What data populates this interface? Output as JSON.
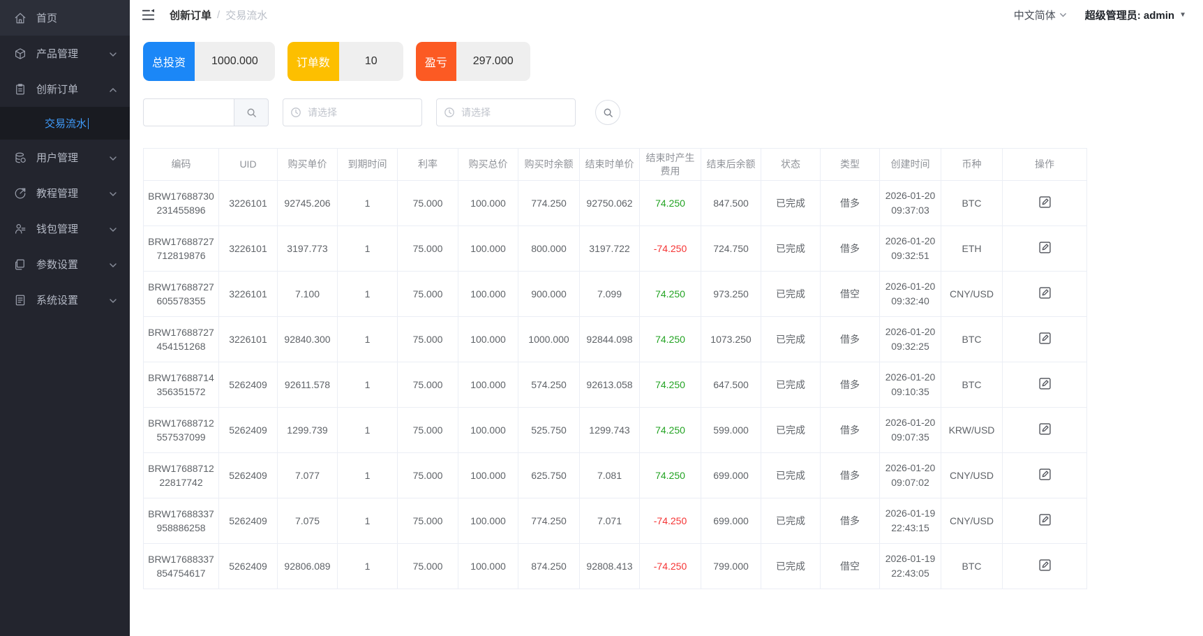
{
  "sidebar": {
    "items": [
      {
        "label": "首页",
        "icon": "home-icon",
        "expandable": false,
        "highlighted": true
      },
      {
        "label": "产品管理",
        "icon": "product-icon",
        "expandable": true,
        "expanded": false
      },
      {
        "label": "创新订单",
        "icon": "order-icon",
        "expandable": true,
        "expanded": true,
        "children": [
          {
            "label": "交易流水",
            "active": true
          }
        ]
      },
      {
        "label": "用户管理",
        "icon": "user-icon",
        "expandable": true,
        "expanded": false
      },
      {
        "label": "教程管理",
        "icon": "tutorial-icon",
        "expandable": true,
        "expanded": false
      },
      {
        "label": "钱包管理",
        "icon": "wallet-icon",
        "expandable": true,
        "expanded": false
      },
      {
        "label": "参数设置",
        "icon": "params-icon",
        "expandable": true,
        "expanded": false
      },
      {
        "label": "系统设置",
        "icon": "system-icon",
        "expandable": true,
        "expanded": false
      }
    ]
  },
  "header": {
    "breadcrumb": {
      "parent": "创新订单",
      "separator": "/",
      "current": "交易流水"
    },
    "language": "中文简体",
    "user": "超级管理员: admin"
  },
  "stats": [
    {
      "label": "总投资",
      "value": "1000.000",
      "color": "#1b87f7"
    },
    {
      "label": "订单数",
      "value": "10",
      "color": "#fdbf00"
    },
    {
      "label": "盈亏",
      "value": "297.000",
      "color": "#fc5a23"
    }
  ],
  "filters": {
    "search_value": "",
    "date_placeholder": "请选择"
  },
  "colors": {
    "profit": "#23a323",
    "loss": "#f53434"
  },
  "table": {
    "columns": [
      "编码",
      "UID",
      "购买单价",
      "到期时间",
      "利率",
      "购买总价",
      "购买时余额",
      "结束时单价",
      "结束时产生费用",
      "结束后余额",
      "状态",
      "类型",
      "创建时间",
      "币种",
      "操作"
    ],
    "rows": [
      {
        "code": "BRW17688730231455896",
        "uid": "3226101",
        "buy_price": "92745.206",
        "expire": "1",
        "rate": "75.000",
        "total": "100.000",
        "balance_at_buy": "774.250",
        "end_price": "92750.062",
        "fee": "74.250",
        "fee_color": "profit",
        "end_balance": "847.500",
        "status": "已完成",
        "type": "借多",
        "created_date": "2026-01-20",
        "created_time": "09:37:03",
        "currency": "BTC"
      },
      {
        "code": "BRW17688727712819876",
        "uid": "3226101",
        "buy_price": "3197.773",
        "expire": "1",
        "rate": "75.000",
        "total": "100.000",
        "balance_at_buy": "800.000",
        "end_price": "3197.722",
        "fee": "-74.250",
        "fee_color": "loss",
        "end_balance": "724.750",
        "status": "已完成",
        "type": "借多",
        "created_date": "2026-01-20",
        "created_time": "09:32:51",
        "currency": "ETH"
      },
      {
        "code": "BRW17688727605578355",
        "uid": "3226101",
        "buy_price": "7.100",
        "expire": "1",
        "rate": "75.000",
        "total": "100.000",
        "balance_at_buy": "900.000",
        "end_price": "7.099",
        "fee": "74.250",
        "fee_color": "profit",
        "end_balance": "973.250",
        "status": "已完成",
        "type": "借空",
        "created_date": "2026-01-20",
        "created_time": "09:32:40",
        "currency": "CNY/USD"
      },
      {
        "code": "BRW17688727454151268",
        "uid": "3226101",
        "buy_price": "92840.300",
        "expire": "1",
        "rate": "75.000",
        "total": "100.000",
        "balance_at_buy": "1000.000",
        "end_price": "92844.098",
        "fee": "74.250",
        "fee_color": "profit",
        "end_balance": "1073.250",
        "status": "已完成",
        "type": "借多",
        "created_date": "2026-01-20",
        "created_time": "09:32:25",
        "currency": "BTC"
      },
      {
        "code": "BRW17688714356351572",
        "uid": "5262409",
        "buy_price": "92611.578",
        "expire": "1",
        "rate": "75.000",
        "total": "100.000",
        "balance_at_buy": "574.250",
        "end_price": "92613.058",
        "fee": "74.250",
        "fee_color": "profit",
        "end_balance": "647.500",
        "status": "已完成",
        "type": "借多",
        "created_date": "2026-01-20",
        "created_time": "09:10:35",
        "currency": "BTC"
      },
      {
        "code": "BRW17688712557537099",
        "uid": "5262409",
        "buy_price": "1299.739",
        "expire": "1",
        "rate": "75.000",
        "total": "100.000",
        "balance_at_buy": "525.750",
        "end_price": "1299.743",
        "fee": "74.250",
        "fee_color": "profit",
        "end_balance": "599.000",
        "status": "已完成",
        "type": "借多",
        "created_date": "2026-01-20",
        "created_time": "09:07:35",
        "currency": "KRW/USD"
      },
      {
        "code": "BRW1768871222817742",
        "uid": "5262409",
        "buy_price": "7.077",
        "expire": "1",
        "rate": "75.000",
        "total": "100.000",
        "balance_at_buy": "625.750",
        "end_price": "7.081",
        "fee": "74.250",
        "fee_color": "profit",
        "end_balance": "699.000",
        "status": "已完成",
        "type": "借多",
        "created_date": "2026-01-20",
        "created_time": "09:07:02",
        "currency": "CNY/USD"
      },
      {
        "code": "BRW17688337958886258",
        "uid": "5262409",
        "buy_price": "7.075",
        "expire": "1",
        "rate": "75.000",
        "total": "100.000",
        "balance_at_buy": "774.250",
        "end_price": "7.071",
        "fee": "-74.250",
        "fee_color": "loss",
        "end_balance": "699.000",
        "status": "已完成",
        "type": "借多",
        "created_date": "2026-01-19",
        "created_time": "22:43:15",
        "currency": "CNY/USD"
      },
      {
        "code": "BRW17688337854754617",
        "uid": "5262409",
        "buy_price": "92806.089",
        "expire": "1",
        "rate": "75.000",
        "total": "100.000",
        "balance_at_buy": "874.250",
        "end_price": "92808.413",
        "fee": "-74.250",
        "fee_color": "loss",
        "end_balance": "799.000",
        "status": "已完成",
        "type": "借空",
        "created_date": "2026-01-19",
        "created_time": "22:43:05",
        "currency": "BTC"
      }
    ]
  }
}
